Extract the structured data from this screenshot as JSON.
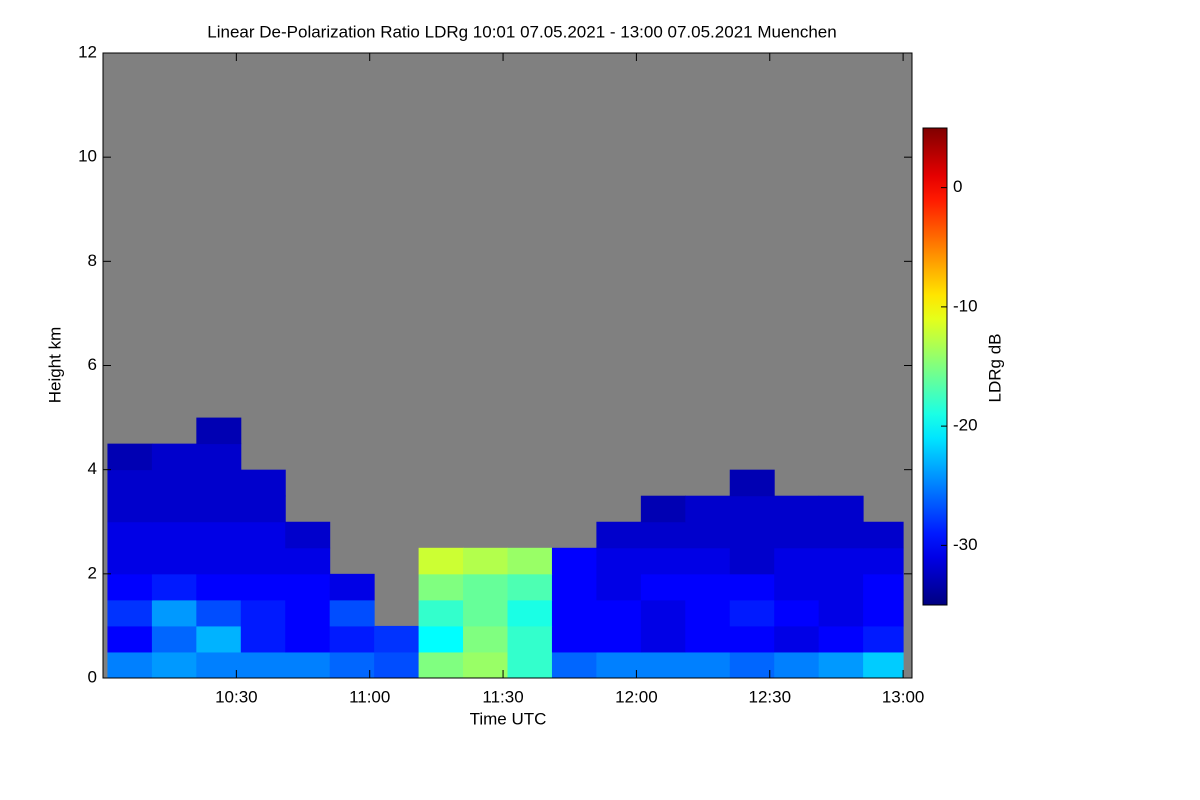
{
  "chart_data": {
    "type": "heatmap",
    "title": "Linear De-Polarization Ratio LDRg   10:01 07.05.2021 - 13:00 07.05.2021 Muenchen",
    "xlabel": "Time UTC",
    "ylabel": "Height km",
    "colorbar_label": "LDRg dB",
    "missing_color": "#808080",
    "colormap": "jet",
    "xlim": [
      600,
      782
    ],
    "xticks": [
      {
        "value": 630,
        "label": "10:30"
      },
      {
        "value": 660,
        "label": "11:00"
      },
      {
        "value": 690,
        "label": "11:30"
      },
      {
        "value": 720,
        "label": "12:00"
      },
      {
        "value": 750,
        "label": "12:30"
      },
      {
        "value": 780,
        "label": "13:00"
      }
    ],
    "ylim": [
      0,
      12
    ],
    "yticks": [
      0,
      2,
      4,
      6,
      8,
      10,
      12
    ],
    "clim": [
      -35,
      5
    ],
    "cticks": [
      -30,
      -20,
      -10,
      0
    ],
    "x_edges": [
      601,
      611,
      621,
      631,
      641,
      651,
      661,
      671,
      681,
      691,
      701,
      711,
      721,
      731,
      741,
      751,
      761,
      771,
      780
    ],
    "y_edges": [
      0,
      0.5,
      1,
      1.5,
      2,
      2.5,
      3,
      3.5,
      4,
      4.5,
      5
    ],
    "z": [
      [
        -25,
        -24,
        -25,
        -25,
        -25,
        -26,
        -27,
        -15,
        -14,
        -18,
        -26,
        -25,
        -25,
        -25,
        -26,
        -25,
        -24,
        -22
      ],
      [
        -30,
        -26,
        -23,
        -29,
        -30,
        -29,
        -28,
        -20,
        -15,
        -18,
        -30,
        -30,
        -31,
        -30,
        -30,
        -31,
        -30,
        -29
      ],
      [
        -28,
        -24,
        -27,
        -29,
        -30,
        -27,
        null,
        -18,
        -16,
        -19,
        -30,
        -30,
        -31,
        -30,
        -29,
        -30,
        -31,
        -30
      ],
      [
        -30,
        -29,
        -30,
        -30,
        -30,
        -31,
        null,
        -15,
        -16,
        -17,
        -30,
        -31,
        -30,
        -30,
        -30,
        -31,
        -31,
        -30
      ],
      [
        -31,
        -31,
        -31,
        -31,
        -31,
        null,
        null,
        -12,
        -13,
        -14,
        -30,
        -31,
        -31,
        -31,
        -32,
        -31,
        -31,
        -31
      ],
      [
        -31,
        -31,
        -31,
        -31,
        -32,
        null,
        null,
        null,
        null,
        null,
        null,
        -32,
        -32,
        -32,
        -32,
        -32,
        -32,
        -32
      ],
      [
        -32,
        -32,
        -32,
        -32,
        null,
        null,
        null,
        null,
        null,
        null,
        null,
        null,
        -33,
        -32,
        -32,
        -32,
        -32,
        null
      ],
      [
        -32,
        -32,
        -32,
        -32,
        null,
        null,
        null,
        null,
        null,
        null,
        null,
        null,
        null,
        null,
        -33,
        null,
        null,
        null
      ],
      [
        -33,
        -32,
        -32,
        null,
        null,
        null,
        null,
        null,
        null,
        null,
        null,
        null,
        null,
        null,
        null,
        null,
        null,
        null
      ],
      [
        null,
        null,
        -33,
        null,
        null,
        null,
        null,
        null,
        null,
        null,
        null,
        null,
        null,
        null,
        null,
        null,
        null,
        null
      ]
    ]
  }
}
